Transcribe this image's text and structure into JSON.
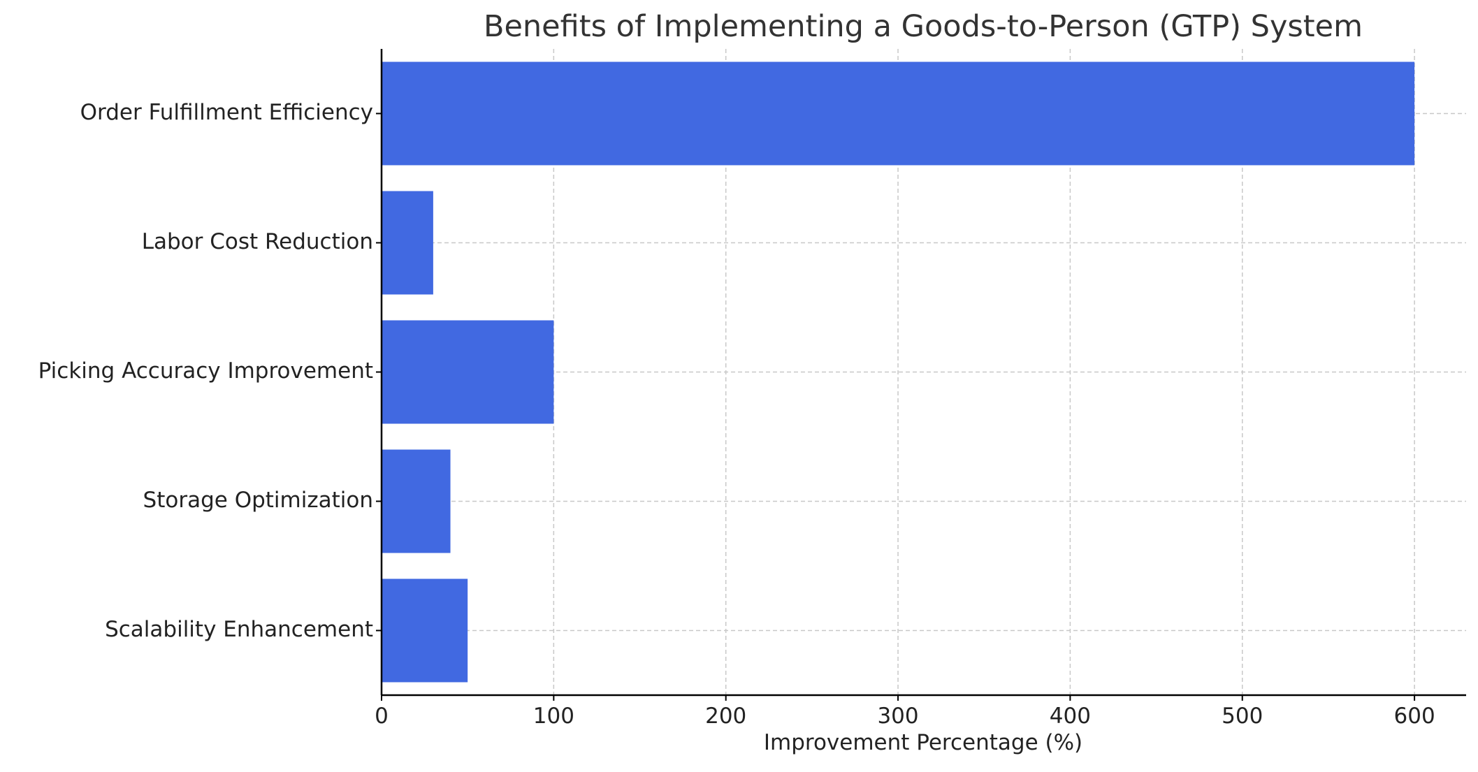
{
  "chart_data": {
    "type": "bar",
    "orientation": "horizontal",
    "title": "Benefits of Implementing a Goods-to-Person (GTP) System",
    "xlabel": "Improvement Percentage (%)",
    "ylabel": "",
    "categories": [
      "Order Fulfillment Efficiency",
      "Labor Cost Reduction",
      "Picking Accuracy Improvement",
      "Storage Optimization",
      "Scalability Enhancement"
    ],
    "values": [
      600,
      30,
      100,
      40,
      50
    ],
    "xlim": [
      0,
      630
    ],
    "xticks": [
      0,
      100,
      200,
      300,
      400,
      500,
      600
    ],
    "grid": true,
    "bar_color": "#4169e1"
  }
}
